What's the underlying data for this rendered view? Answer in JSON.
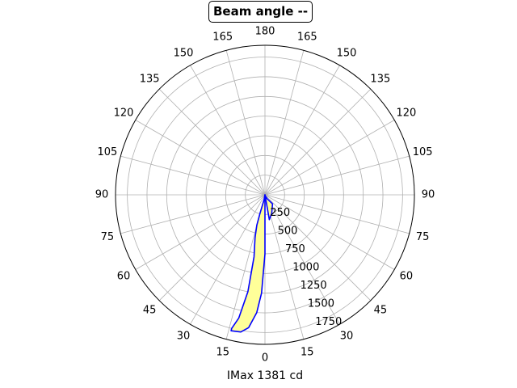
{
  "chart_data": {
    "type": "polar-line",
    "title": "Beam angle --",
    "xlabel": "IMax 1381 cd",
    "angle_tick_labels": [
      "0",
      "15",
      "30",
      "45",
      "60",
      "75",
      "90",
      "105",
      "120",
      "135",
      "150",
      "165",
      "180",
      "165",
      "150",
      "135",
      "120",
      "105",
      "90",
      "75",
      "60",
      "45",
      "30",
      "15"
    ],
    "radial_ticks": [
      250,
      500,
      750,
      1000,
      1250,
      1500,
      1750
    ],
    "rlim": [
      0,
      1900
    ],
    "grid": true,
    "series": [
      {
        "color": "#0000ff",
        "fill": "#ffff99",
        "points": [
          {
            "angle": 0,
            "r": 0
          },
          {
            "angle": 10,
            "r": 320
          },
          {
            "angle": 20,
            "r": 250
          },
          {
            "angle": 40,
            "r": 150
          },
          {
            "angle": 30,
            "r": 60
          },
          {
            "angle": 15,
            "r": 15
          }
        ]
      },
      {
        "color": "#0000ff",
        "fill": "#ffff99",
        "points": [
          {
            "angle": 0,
            "r": 0
          },
          {
            "angle": -10,
            "r": 60
          },
          {
            "angle": -15,
            "r": 250
          },
          {
            "angle": -15,
            "r": 400
          },
          {
            "angle": -13,
            "r": 560
          },
          {
            "angle": -10,
            "r": 800
          },
          {
            "angle": -10,
            "r": 1250
          },
          {
            "angle": -12,
            "r": 1600
          },
          {
            "angle": -14,
            "r": 1750
          },
          {
            "angle": -14,
            "r": 1780
          },
          {
            "angle": -10,
            "r": 1770
          },
          {
            "angle": -7,
            "r": 1700
          },
          {
            "angle": -4,
            "r": 1500
          },
          {
            "angle": -2,
            "r": 1250
          },
          {
            "angle": 0,
            "r": 750
          },
          {
            "angle": 0,
            "r": 300
          }
        ]
      }
    ]
  }
}
